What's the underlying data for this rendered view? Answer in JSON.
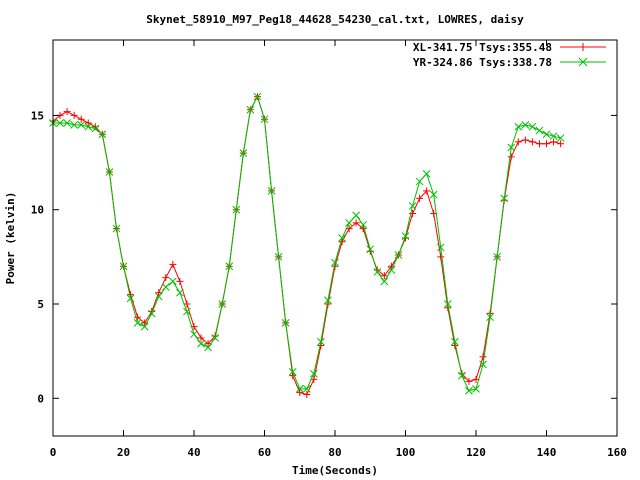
{
  "chart_data": {
    "type": "scatter",
    "title": "Skynet_58910_M97_Peg18_44628_54230_cal.txt, LOWRES, daisy",
    "xlabel": "Time(Seconds)",
    "ylabel": "Power (kelvin)",
    "xlim": [
      0,
      160
    ],
    "ylim": [
      -2,
      19
    ],
    "x_ticks": [
      0,
      20,
      40,
      60,
      80,
      100,
      120,
      140,
      160
    ],
    "y_ticks": [
      0,
      5,
      10,
      15
    ],
    "grid": false,
    "legend_position": "top-right",
    "series": [
      {
        "name": "XL-341.75 Tsys:355.48",
        "color": "#ff0000",
        "marker": "plus",
        "x": [
          0,
          2,
          4,
          6,
          8,
          10,
          12,
          14,
          16,
          18,
          20,
          22,
          24,
          26,
          28,
          30,
          32,
          34,
          36,
          38,
          40,
          42,
          44,
          46,
          48,
          50,
          52,
          54,
          56,
          58,
          60,
          62,
          64,
          66,
          68,
          70,
          72,
          74,
          76,
          78,
          80,
          82,
          84,
          86,
          88,
          90,
          92,
          94,
          96,
          98,
          100,
          102,
          104,
          106,
          108,
          110,
          112,
          114,
          116,
          118,
          120,
          122,
          124,
          126,
          128,
          130,
          132,
          134,
          136,
          138,
          140,
          142,
          144
        ],
        "y": [
          14.7,
          15.0,
          15.2,
          15.0,
          14.8,
          14.6,
          14.4,
          14.0,
          12.0,
          9.0,
          7.0,
          5.5,
          4.3,
          4.0,
          4.6,
          5.6,
          6.4,
          7.1,
          6.2,
          5.0,
          3.8,
          3.2,
          2.9,
          3.3,
          5.0,
          7.0,
          10.0,
          13.0,
          15.3,
          16.0,
          14.8,
          11.0,
          7.5,
          4.0,
          1.2,
          0.3,
          0.2,
          1.0,
          2.8,
          5.0,
          7.0,
          8.3,
          9.0,
          9.3,
          9.0,
          7.8,
          6.8,
          6.5,
          7.0,
          7.6,
          8.5,
          9.8,
          10.6,
          11.0,
          9.8,
          7.5,
          4.8,
          2.8,
          1.3,
          0.9,
          1.0,
          2.2,
          4.5,
          7.5,
          10.5,
          12.8,
          13.6,
          13.7,
          13.6,
          13.5,
          13.5,
          13.6,
          13.5
        ]
      },
      {
        "name": "YR-324.86 Tsys:338.78",
        "color": "#00c000",
        "marker": "x",
        "x": [
          0,
          2,
          4,
          6,
          8,
          10,
          12,
          14,
          16,
          18,
          20,
          22,
          24,
          26,
          28,
          30,
          32,
          34,
          36,
          38,
          40,
          42,
          44,
          46,
          48,
          50,
          52,
          54,
          56,
          58,
          60,
          62,
          64,
          66,
          68,
          70,
          72,
          74,
          76,
          78,
          80,
          82,
          84,
          86,
          88,
          90,
          92,
          94,
          96,
          98,
          100,
          102,
          104,
          106,
          108,
          110,
          112,
          114,
          116,
          118,
          120,
          122,
          124,
          126,
          128,
          130,
          132,
          134,
          136,
          138,
          140,
          142,
          144
        ],
        "y": [
          14.6,
          14.6,
          14.6,
          14.5,
          14.5,
          14.4,
          14.3,
          14.0,
          12.0,
          9.0,
          7.0,
          5.3,
          4.0,
          3.8,
          4.5,
          5.4,
          5.9,
          6.2,
          5.6,
          4.6,
          3.4,
          2.9,
          2.7,
          3.2,
          5.0,
          7.0,
          10.0,
          13.0,
          15.3,
          16.0,
          14.8,
          11.0,
          7.5,
          4.0,
          1.4,
          0.5,
          0.5,
          1.3,
          3.0,
          5.2,
          7.2,
          8.5,
          9.3,
          9.7,
          9.2,
          7.9,
          6.7,
          6.2,
          6.8,
          7.6,
          8.6,
          10.2,
          11.5,
          11.9,
          10.8,
          8.0,
          5.0,
          3.0,
          1.2,
          0.4,
          0.5,
          1.8,
          4.3,
          7.5,
          10.6,
          13.3,
          14.4,
          14.5,
          14.4,
          14.2,
          14.0,
          13.9,
          13.8
        ]
      }
    ]
  }
}
